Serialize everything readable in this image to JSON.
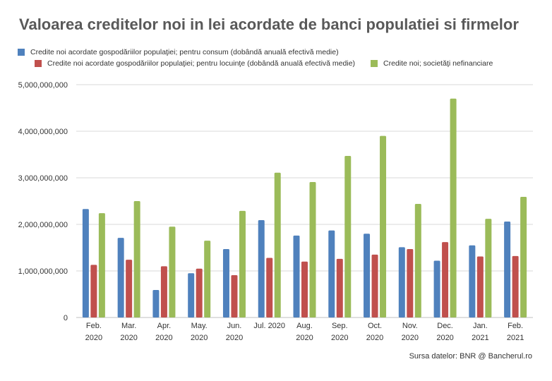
{
  "chart_data": {
    "type": "bar",
    "title": "Valoarea creditelor noi in lei acordate de banci populatiei si firmelor",
    "categories": [
      [
        "Feb.",
        "2020"
      ],
      [
        "Mar.",
        "2020"
      ],
      [
        "Apr.",
        "2020"
      ],
      [
        "May.",
        "2020"
      ],
      [
        "Jun.",
        "2020"
      ],
      [
        "Jul. 2020"
      ],
      [
        "Aug.",
        "2020"
      ],
      [
        "Sep.",
        "2020"
      ],
      [
        "Oct.",
        "2020"
      ],
      [
        "Nov.",
        "2020"
      ],
      [
        "Dec.",
        "2020"
      ],
      [
        "Jan.",
        "2021"
      ],
      [
        "Feb.",
        "2021"
      ]
    ],
    "series": [
      {
        "name": "Credite noi acordate gospodăriilor populaţiei; pentru consum (dobândă anuală efectivă medie)",
        "color": "#4f81bd",
        "values": [
          2330000000,
          1710000000,
          590000000,
          950000000,
          1470000000,
          2090000000,
          1760000000,
          1870000000,
          1800000000,
          1510000000,
          1220000000,
          1550000000,
          2060000000
        ]
      },
      {
        "name": "Credite noi acordate gospodăriilor populaţiei; pentru locuinţe (dobândă anuală efectivă medie)",
        "color": "#c0504d",
        "values": [
          1130000000,
          1240000000,
          1100000000,
          1050000000,
          910000000,
          1280000000,
          1200000000,
          1260000000,
          1350000000,
          1470000000,
          1620000000,
          1310000000,
          1320000000
        ]
      },
      {
        "name": "Credite noi; societăţi nefinanciare",
        "color": "#9bbb59",
        "values": [
          2240000000,
          2500000000,
          1950000000,
          1650000000,
          2290000000,
          3110000000,
          2910000000,
          3470000000,
          3900000000,
          2440000000,
          4700000000,
          2120000000,
          2590000000
        ]
      }
    ],
    "yticks": [
      "0",
      "1,000,000,000",
      "2,000,000,000",
      "3,000,000,000",
      "4,000,000,000",
      "5,000,000,000"
    ],
    "ylim": [
      0,
      5000000000
    ],
    "grid": true,
    "legend_position": "top"
  },
  "source_text": "Sursa datelor: BNR @ Bancherul.ro"
}
